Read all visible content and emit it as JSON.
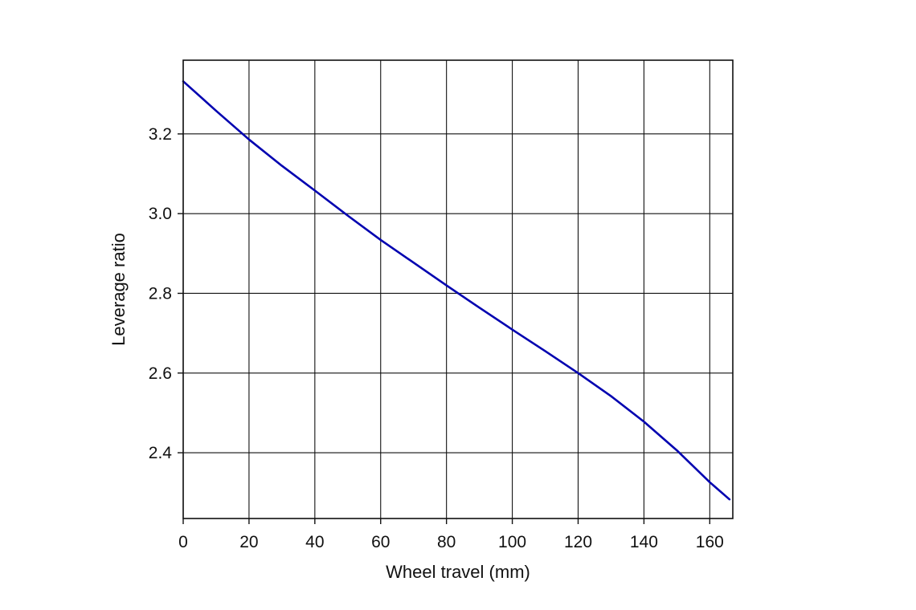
{
  "chart_data": {
    "type": "line",
    "title": "",
    "xlabel": "Wheel travel (mm)",
    "ylabel": "Leverage ratio",
    "xlim": [
      0,
      167
    ],
    "ylim": [
      2.235,
      3.385
    ],
    "x_ticks": [
      0,
      20,
      40,
      60,
      80,
      100,
      120,
      140,
      160
    ],
    "y_ticks": [
      2.4,
      2.6,
      2.8,
      3.0,
      3.2
    ],
    "x_tick_labels": [
      "0",
      "20",
      "40",
      "60",
      "80",
      "100",
      "120",
      "140",
      "160"
    ],
    "y_tick_labels": [
      "2.4",
      "2.6",
      "2.8",
      "3.0",
      "3.2"
    ],
    "grid": true,
    "line_color": "#0000b0",
    "series": [
      {
        "x": [
          0,
          10,
          20,
          30,
          40,
          50,
          60,
          70,
          80,
          90,
          100,
          110,
          120,
          130,
          140,
          150,
          160,
          166
        ],
        "y": [
          3.332,
          3.258,
          3.186,
          3.12,
          3.058,
          2.995,
          2.934,
          2.877,
          2.82,
          2.764,
          2.709,
          2.655,
          2.6,
          2.542,
          2.478,
          2.406,
          2.326,
          2.283
        ]
      }
    ]
  }
}
